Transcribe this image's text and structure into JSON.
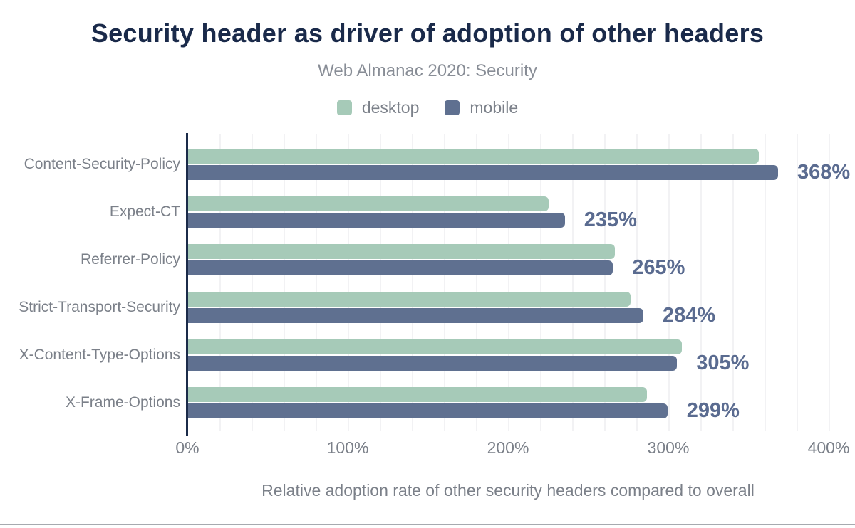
{
  "figure": {
    "title": "Security header as driver of adoption of other headers",
    "subtitle": "Web Almanac 2020: Security"
  },
  "legend": {
    "items": [
      {
        "label": "desktop",
        "color": "#a6cab8"
      },
      {
        "label": "mobile",
        "color": "#5f7090"
      }
    ]
  },
  "chart_data": {
    "type": "bar",
    "orientation": "horizontal",
    "title": "Security header as driver of adoption of other headers",
    "subtitle": "Web Almanac 2020: Security",
    "categories": [
      "Content-Security-Policy",
      "Expect-CT",
      "Referrer-Policy",
      "Strict-Transport-Security",
      "X-Content-Type-Options",
      "X-Frame-Options"
    ],
    "series": [
      {
        "name": "desktop",
        "color": "#a6cab8",
        "values": [
          356,
          225,
          266,
          276,
          308,
          286
        ]
      },
      {
        "name": "mobile",
        "color": "#5f7090",
        "values": [
          368,
          235,
          265,
          284,
          305,
          299
        ]
      }
    ],
    "value_labels": {
      "labeled_series": "mobile",
      "labels": [
        "368%",
        "235%",
        "265%",
        "284%",
        "305%",
        "299%"
      ]
    },
    "xlabel": "Relative adoption rate of other security headers compared to overall",
    "ylabel": "",
    "xlim": [
      0,
      400
    ],
    "x_ticks": [
      "0%",
      "100%",
      "200%",
      "300%",
      "400%"
    ],
    "x_tick_values": [
      0,
      100,
      200,
      300,
      400
    ],
    "grid": {
      "vertical_step_percent": 20,
      "color": "#f2f2f4",
      "horizontal": false
    },
    "legend_position": "top"
  },
  "colors": {
    "title": "#1a2a4a",
    "subtitle": "#888d96",
    "axis_line": "#1b2b49",
    "tick_and_category_labels": "#7b8089",
    "value_label": "#5a6b90",
    "desktop_bar": "#a6cab8",
    "mobile_bar": "#5f7090",
    "gridline": "#f2f2f4",
    "bottom_border": "#a7aaaf",
    "background": "#ffffff"
  }
}
